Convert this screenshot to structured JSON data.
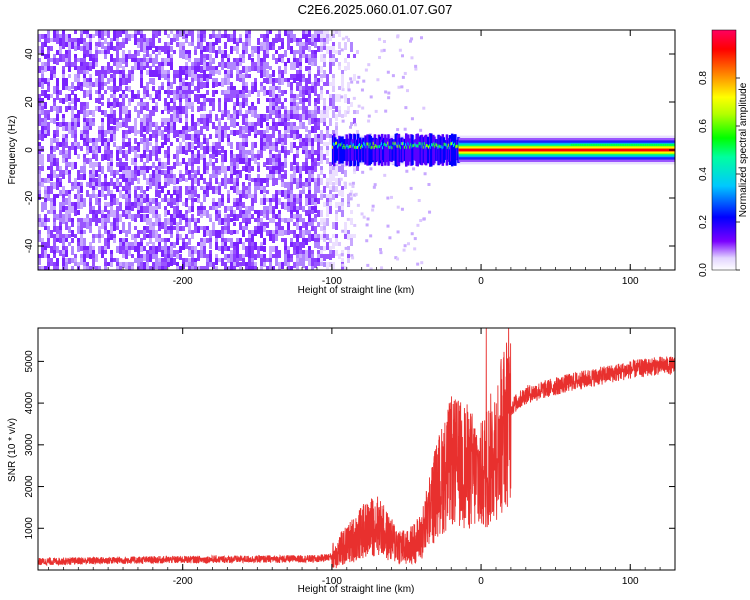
{
  "title": "C2E6.2025.060.01.07.G07",
  "colors": {
    "snr_line": "#e8302e",
    "frame": "#000000",
    "background": "#ffffff"
  },
  "chart_data": [
    {
      "type": "heatmap",
      "xlabel": "Height of straight line (km)",
      "ylabel": "Frequency (Hz)",
      "xlim": [
        -297,
        130
      ],
      "ylim": [
        -50,
        50
      ],
      "x_ticks": [
        -200,
        -100,
        0,
        100
      ],
      "y_ticks": [
        -40,
        -20,
        0,
        20,
        40
      ],
      "colorbar": {
        "label": "Normalized spectral amplitude",
        "range": [
          0,
          1
        ],
        "ticks": [
          "0.0",
          "0.2",
          "0.4",
          "0.6",
          "0.8"
        ],
        "colormap": "hsv"
      },
      "regions": [
        {
          "x_range": [
            -297,
            -100
          ],
          "description": "broadband noise, amplitude ~0.05-0.1"
        },
        {
          "x_range": [
            -100,
            -15
          ],
          "center_frequency": 0,
          "amplitude": 0.35
        },
        {
          "x_range": [
            -15,
            130
          ],
          "center_frequency": 0,
          "amplitude": 1.0
        }
      ]
    },
    {
      "type": "line",
      "xlabel": "Height of straight line (km)",
      "ylabel": "SNR (10 * v/v)",
      "xlim": [
        -297,
        130
      ],
      "ylim": [
        0,
        5800
      ],
      "x_ticks": [
        -200,
        -100,
        0,
        100
      ],
      "y_ticks": [
        1000,
        2000,
        3000,
        4000,
        5000
      ],
      "series": [
        {
          "x": [
            -297,
            -250,
            -200,
            -150,
            -110,
            -100,
            -90,
            -80,
            -70,
            -60,
            -50,
            -40,
            -30,
            -20,
            -10,
            0,
            10,
            20,
            30,
            40,
            60,
            80,
            100,
            120,
            130
          ],
          "values": [
            200,
            230,
            250,
            260,
            270,
            320,
            600,
            900,
            1100,
            700,
            500,
            800,
            1900,
            2600,
            2500,
            2200,
            2900,
            3900,
            4200,
            4300,
            4500,
            4650,
            4800,
            4900,
            4900
          ]
        }
      ]
    }
  ]
}
